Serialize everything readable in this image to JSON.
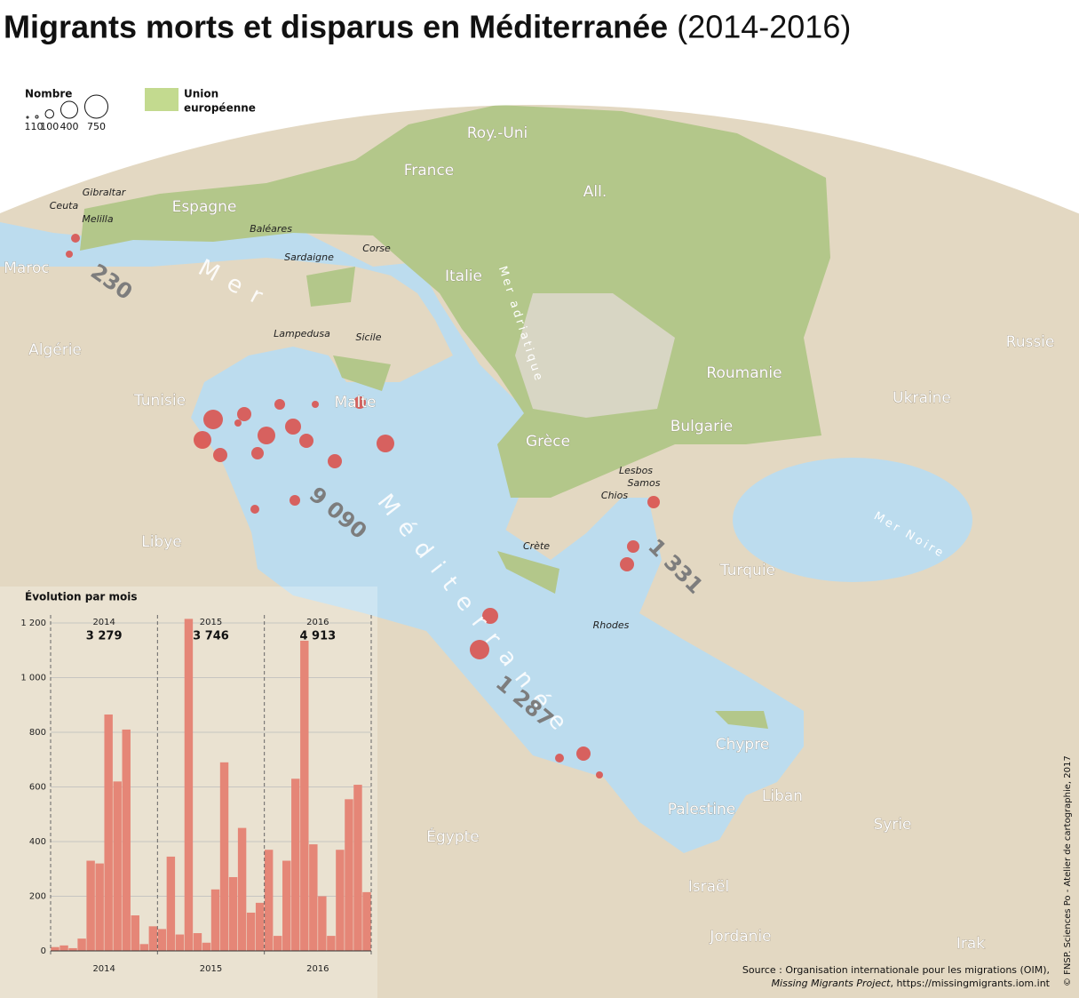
{
  "title": "Migrants morts et disparus en Méditerranée",
  "title_years": "(2014-2016)",
  "legend": {
    "size_title": "Nombre",
    "sizes": [
      1,
      10,
      100,
      400,
      750
    ],
    "eu_label_1": "Union",
    "eu_label_2": "européenne"
  },
  "map": {
    "countries": [
      "Roy.-Uni",
      "France",
      "All.",
      "Espagne",
      "Maroc",
      "Italie",
      "Algérie",
      "Tunisie",
      "Malte",
      "Russie",
      "Roumanie",
      "Ukraine",
      "Bulgarie",
      "Grèce",
      "Libye",
      "Turquie",
      "Chypre",
      "Liban",
      "Palestine",
      "Syrie",
      "Égypte",
      "Israël",
      "Jordanie",
      "Irak"
    ],
    "places": [
      "Gibraltar",
      "Ceuta",
      "Melilla",
      "Baléares",
      "Sardaigne",
      "Corse",
      "Lampedusa",
      "Sicile",
      "Lesbos",
      "Samos",
      "Chios",
      "Crète",
      "Rhodes"
    ],
    "seas": [
      "Mer",
      "Méditerranée",
      "Mer adriatique",
      "Mer Noire"
    ],
    "routes": [
      "230",
      "9 090",
      "1 331",
      "1 287"
    ]
  },
  "source_1": "Source : Organisation internationale pour les migrations (OIM),",
  "source_2a": "Missing Migrants Project",
  "source_2b": ", https://missingmigrants.iom.int",
  "credit": "© FNSP. Sciences Po -  Atelier de cartographie, 2017",
  "chart_data": {
    "type": "bar",
    "title": "Évolution par mois",
    "color": "#e58677",
    "categories": [
      null,
      null,
      null,
      null,
      null,
      null,
      null,
      null,
      null,
      null,
      null,
      null,
      null,
      null,
      null,
      null,
      null,
      null,
      null,
      null,
      null,
      null,
      null,
      null,
      null,
      null,
      null,
      null,
      null,
      null,
      null,
      null,
      null,
      null,
      null,
      null
    ],
    "values": [
      14,
      20,
      10,
      45,
      330,
      320,
      865,
      620,
      810,
      130,
      25,
      90,
      80,
      345,
      60,
      1215,
      65,
      30,
      225,
      690,
      270,
      450,
      140,
      176,
      370,
      55,
      330,
      630,
      1135,
      390,
      200,
      55,
      370,
      555,
      608,
      215
    ],
    "years": [
      "2014",
      "2015",
      "2016"
    ],
    "year_totals": [
      3279,
      3746,
      4913
    ],
    "year_total_labels": [
      "3 279",
      "3 746",
      "4 913"
    ],
    "ylim": [
      0,
      1200
    ],
    "yticks": [
      0,
      200,
      400,
      600,
      800,
      {
        "value": 1000,
        "label": "1 000"
      },
      {
        "value": 1200,
        "label": "1 200"
      }
    ],
    "grid": true
  }
}
